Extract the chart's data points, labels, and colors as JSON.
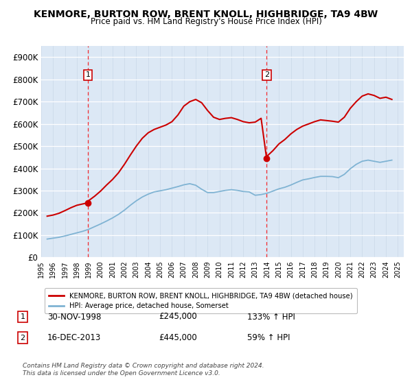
{
  "title": "KENMORE, BURTON ROW, BRENT KNOLL, HIGHBRIDGE, TA9 4BW",
  "subtitle": "Price paid vs. HM Land Registry's House Price Index (HPI)",
  "ylim": [
    0,
    950000
  ],
  "yticks": [
    0,
    100000,
    200000,
    300000,
    400000,
    500000,
    600000,
    700000,
    800000,
    900000
  ],
  "ytick_labels": [
    "£0",
    "£100K",
    "£200K",
    "£300K",
    "£400K",
    "£500K",
    "£600K",
    "£700K",
    "£800K",
    "£900K"
  ],
  "sale1_date": 1998.92,
  "sale1_price": 245000,
  "sale1_label": "1",
  "sale1_text": "30-NOV-1998",
  "sale1_hpi": "133% ↑ HPI",
  "sale2_date": 2013.96,
  "sale2_price": 445000,
  "sale2_label": "2",
  "sale2_text": "16-DEC-2013",
  "sale2_hpi": "59% ↑ HPI",
  "house_line_color": "#cc0000",
  "hpi_line_color": "#7fb3d3",
  "background_color": "#dce8f5",
  "legend_label_house": "KENMORE, BURTON ROW, BRENT KNOLL, HIGHBRIDGE, TA9 4BW (detached house)",
  "legend_label_hpi": "HPI: Average price, detached house, Somerset",
  "footer": "Contains HM Land Registry data © Crown copyright and database right 2024.\nThis data is licensed under the Open Government Licence v3.0.",
  "xmin": 1995.0,
  "xmax": 2025.5,
  "hpi_years": [
    1995.5,
    1996.0,
    1996.5,
    1997.0,
    1997.5,
    1998.0,
    1998.5,
    1999.0,
    1999.5,
    2000.0,
    2000.5,
    2001.0,
    2001.5,
    2002.0,
    2002.5,
    2003.0,
    2003.5,
    2004.0,
    2004.5,
    2005.0,
    2005.5,
    2006.0,
    2006.5,
    2007.0,
    2007.5,
    2008.0,
    2008.5,
    2009.0,
    2009.5,
    2010.0,
    2010.5,
    2011.0,
    2011.5,
    2012.0,
    2012.5,
    2013.0,
    2013.5,
    2014.0,
    2014.5,
    2015.0,
    2015.5,
    2016.0,
    2016.5,
    2017.0,
    2017.5,
    2018.0,
    2018.5,
    2019.0,
    2019.5,
    2020.0,
    2020.5,
    2021.0,
    2021.5,
    2022.0,
    2022.5,
    2023.0,
    2023.5,
    2024.0,
    2024.5
  ],
  "hpi_values": [
    82000,
    86000,
    90000,
    96000,
    103000,
    110000,
    117000,
    126000,
    138000,
    150000,
    163000,
    177000,
    193000,
    212000,
    234000,
    254000,
    271000,
    284000,
    294000,
    299000,
    304000,
    311000,
    318000,
    326000,
    331000,
    324000,
    306000,
    291000,
    291000,
    296000,
    301000,
    304000,
    301000,
    296000,
    294000,
    279000,
    282000,
    288000,
    298000,
    308000,
    315000,
    325000,
    337000,
    348000,
    353000,
    359000,
    364000,
    364000,
    363000,
    358000,
    373000,
    398000,
    418000,
    432000,
    437000,
    432000,
    427000,
    432000,
    437000
  ],
  "red_years": [
    1995.5,
    1996.0,
    1996.5,
    1997.0,
    1997.5,
    1998.0,
    1998.5,
    1998.92,
    1999.0,
    1999.5,
    2000.0,
    2000.5,
    2001.0,
    2001.5,
    2002.0,
    2002.5,
    2003.0,
    2003.5,
    2004.0,
    2004.5,
    2005.0,
    2005.5,
    2006.0,
    2006.5,
    2007.0,
    2007.5,
    2008.0,
    2008.5,
    2009.0,
    2009.5,
    2010.0,
    2010.5,
    2011.0,
    2011.5,
    2012.0,
    2012.5,
    2013.0,
    2013.5,
    2013.96,
    2014.0,
    2014.5,
    2015.0,
    2015.5,
    2016.0,
    2016.5,
    2017.0,
    2017.5,
    2018.0,
    2018.5,
    2019.0,
    2019.5,
    2020.0,
    2020.5,
    2021.0,
    2021.5,
    2022.0,
    2022.5,
    2023.0,
    2023.5,
    2024.0,
    2024.5
  ],
  "red_values": [
    185000,
    190000,
    198000,
    210000,
    223000,
    234000,
    240000,
    245000,
    255000,
    275000,
    298000,
    325000,
    350000,
    380000,
    418000,
    460000,
    500000,
    535000,
    560000,
    575000,
    585000,
    595000,
    610000,
    640000,
    680000,
    700000,
    710000,
    695000,
    660000,
    630000,
    620000,
    625000,
    628000,
    620000,
    610000,
    605000,
    608000,
    625000,
    445000,
    455000,
    480000,
    510000,
    530000,
    555000,
    575000,
    590000,
    600000,
    610000,
    618000,
    615000,
    612000,
    608000,
    630000,
    670000,
    700000,
    725000,
    735000,
    728000,
    715000,
    720000,
    710000
  ]
}
